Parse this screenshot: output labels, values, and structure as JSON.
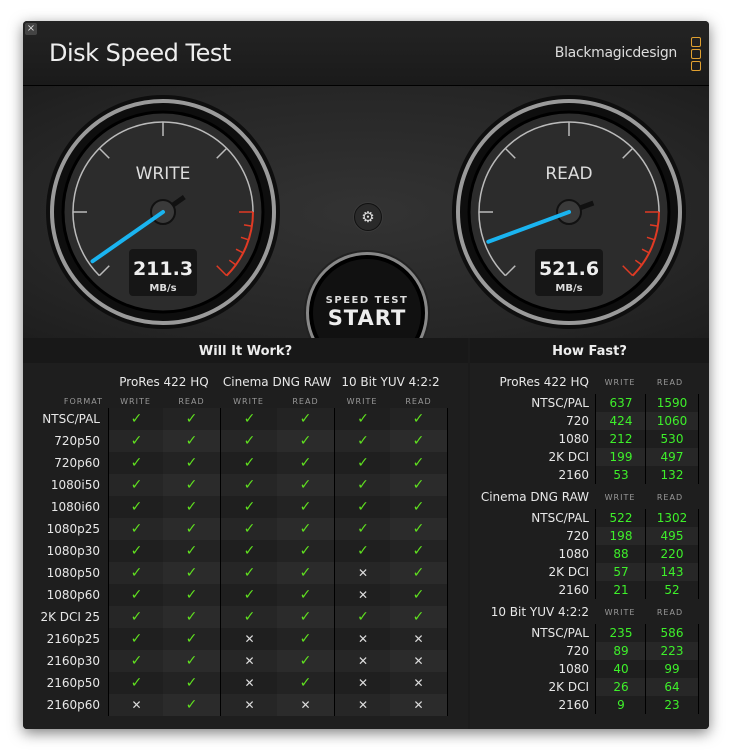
{
  "window": {
    "close_label": "×",
    "title": "Disk Speed Test",
    "brand": "Blackmagicdesign"
  },
  "gauges": {
    "write": {
      "label": "WRITE",
      "value": "211.3",
      "unit": "MB/s"
    },
    "read": {
      "label": "READ",
      "value": "521.6",
      "unit": "MB/s"
    }
  },
  "colors": {
    "needle": "#1ab4f0",
    "redzone": "#e03a24",
    "check": "#5fe01f",
    "number": "#3ef02a"
  },
  "settings_icon": "gear-icon",
  "start_button": {
    "line1": "SPEED TEST",
    "line2": "START"
  },
  "will_it_work": {
    "title": "Will It Work?",
    "format_header": "FORMAT",
    "groups": [
      "ProRes 422 HQ",
      "Cinema DNG RAW",
      "10 Bit YUV 4:2:2"
    ],
    "sub": [
      "WRITE",
      "READ"
    ],
    "rows": [
      {
        "format": "NTSC/PAL",
        "r": [
          1,
          1,
          1,
          1,
          1,
          1
        ]
      },
      {
        "format": "720p50",
        "r": [
          1,
          1,
          1,
          1,
          1,
          1
        ]
      },
      {
        "format": "720p60",
        "r": [
          1,
          1,
          1,
          1,
          1,
          1
        ]
      },
      {
        "format": "1080i50",
        "r": [
          1,
          1,
          1,
          1,
          1,
          1
        ]
      },
      {
        "format": "1080i60",
        "r": [
          1,
          1,
          1,
          1,
          1,
          1
        ]
      },
      {
        "format": "1080p25",
        "r": [
          1,
          1,
          1,
          1,
          1,
          1
        ]
      },
      {
        "format": "1080p30",
        "r": [
          1,
          1,
          1,
          1,
          1,
          1
        ]
      },
      {
        "format": "1080p50",
        "r": [
          1,
          1,
          1,
          1,
          0,
          1
        ]
      },
      {
        "format": "1080p60",
        "r": [
          1,
          1,
          1,
          1,
          0,
          1
        ]
      },
      {
        "format": "2K DCI 25",
        "r": [
          1,
          1,
          1,
          1,
          1,
          1
        ]
      },
      {
        "format": "2160p25",
        "r": [
          1,
          1,
          0,
          1,
          0,
          0
        ]
      },
      {
        "format": "2160p30",
        "r": [
          1,
          1,
          0,
          1,
          0,
          0
        ]
      },
      {
        "format": "2160p50",
        "r": [
          1,
          1,
          0,
          1,
          0,
          0
        ]
      },
      {
        "format": "2160p60",
        "r": [
          0,
          1,
          0,
          0,
          0,
          0
        ]
      }
    ]
  },
  "how_fast": {
    "title": "How Fast?",
    "sub": [
      "WRITE",
      "READ"
    ],
    "sections": [
      {
        "name": "ProRes 422 HQ",
        "rows": [
          [
            "NTSC/PAL",
            "637",
            "1590"
          ],
          [
            "720",
            "424",
            "1060"
          ],
          [
            "1080",
            "212",
            "530"
          ],
          [
            "2K DCI",
            "199",
            "497"
          ],
          [
            "2160",
            "53",
            "132"
          ]
        ]
      },
      {
        "name": "Cinema DNG RAW",
        "rows": [
          [
            "NTSC/PAL",
            "522",
            "1302"
          ],
          [
            "720",
            "198",
            "495"
          ],
          [
            "1080",
            "88",
            "220"
          ],
          [
            "2K DCI",
            "57",
            "143"
          ],
          [
            "2160",
            "21",
            "52"
          ]
        ]
      },
      {
        "name": "10 Bit YUV 4:2:2",
        "rows": [
          [
            "NTSC/PAL",
            "235",
            "586"
          ],
          [
            "720",
            "89",
            "223"
          ],
          [
            "1080",
            "40",
            "99"
          ],
          [
            "2K DCI",
            "26",
            "64"
          ],
          [
            "2160",
            "9",
            "23"
          ]
        ]
      }
    ]
  }
}
